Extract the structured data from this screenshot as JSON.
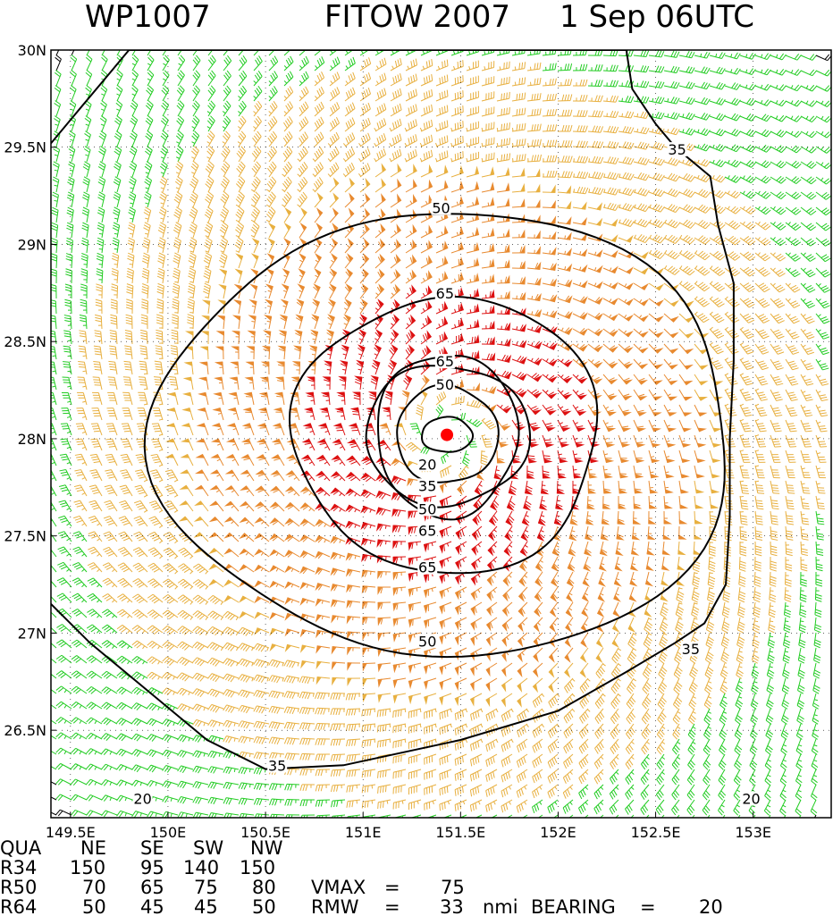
{
  "title": {
    "storm_id": "WP1007",
    "storm_name": "FITOW 2007",
    "date": "1 Sep 06UTC"
  },
  "colors": {
    "barb_lt20": "#000000",
    "barb_20_35": "#22cc22",
    "barb_35_50": "#e8b040",
    "barb_50_65": "#e88a30",
    "barb_ge65": "#dd1111",
    "contour": "#000000",
    "center": "#ff0000"
  },
  "chart_data": {
    "type": "wind-field-map",
    "x_axis": {
      "range": [
        149.4,
        153.4
      ],
      "ticks": [
        149.5,
        150,
        150.5,
        151,
        151.5,
        152,
        152.5,
        153
      ],
      "tick_labels": [
        "149.5E",
        "150E",
        "150.5E",
        "151E",
        "151.5E",
        "152E",
        "152.5E",
        "153E"
      ]
    },
    "y_axis": {
      "range": [
        26.05,
        30
      ],
      "ticks": [
        26.5,
        27,
        27.5,
        28,
        28.5,
        29,
        29.5,
        30
      ],
      "tick_labels": [
        "26.5N",
        "27N",
        "27.5N",
        "28N",
        "28.5N",
        "29N",
        "29.5N",
        "30N"
      ]
    },
    "grid": true,
    "storm_center": {
      "lon": 151.43,
      "lat": 28.02
    },
    "contour_levels_kt": [
      20,
      35,
      50,
      65
    ],
    "contours": [
      {
        "level": 20,
        "radius_lon": 0.13,
        "radius_lat": 0.09,
        "label": "20"
      },
      {
        "level": 35,
        "radius_lon": 0.26,
        "radius_lat": 0.25,
        "label": "35"
      },
      {
        "level": 50,
        "radius_lon": 0.42,
        "radius_lat": 0.36,
        "label": "50"
      },
      {
        "level": 65,
        "radius_lon": 0.36,
        "radius_lat": 0.42,
        "label": "65"
      },
      {
        "level": 65,
        "radius_lon": 0.78,
        "radius_lat": 0.71,
        "label": "65"
      },
      {
        "level": 50,
        "radius_lon": 1.48,
        "radius_lat": 1.14,
        "label": "50"
      },
      {
        "level": 35,
        "label": "35"
      }
    ],
    "contour_labels": [
      {
        "text": "50",
        "lon": 151.4,
        "lat": 29.18
      },
      {
        "text": "65",
        "lon": 151.42,
        "lat": 28.74
      },
      {
        "text": "65",
        "lon": 151.42,
        "lat": 28.39
      },
      {
        "text": "50",
        "lon": 151.42,
        "lat": 28.27
      },
      {
        "text": "20",
        "lon": 151.33,
        "lat": 27.86
      },
      {
        "text": "35",
        "lon": 151.33,
        "lat": 27.75
      },
      {
        "text": "50",
        "lon": 151.33,
        "lat": 27.63
      },
      {
        "text": "65",
        "lon": 151.33,
        "lat": 27.52
      },
      {
        "text": "65",
        "lon": 151.33,
        "lat": 27.33
      },
      {
        "text": "50",
        "lon": 151.33,
        "lat": 26.95
      },
      {
        "text": "35",
        "lon": 152.61,
        "lat": 29.48
      },
      {
        "text": "35",
        "lon": 152.68,
        "lat": 26.91
      },
      {
        "text": "35",
        "lon": 150.56,
        "lat": 26.31
      },
      {
        "text": "20",
        "lon": 149.87,
        "lat": 26.14
      },
      {
        "text": "20",
        "lon": 152.99,
        "lat": 26.14
      }
    ]
  },
  "wind_radii": {
    "header": [
      "QUA",
      "NE",
      "SE",
      "SW",
      "NW"
    ],
    "rows": [
      {
        "label": "R34",
        "values": [
          "150",
          "95",
          "140",
          "150"
        ]
      },
      {
        "label": "R50",
        "values": [
          "70",
          "65",
          "75",
          "80"
        ]
      },
      {
        "label": "R64",
        "values": [
          "50",
          "45",
          "45",
          "50"
        ]
      }
    ],
    "vmax_label": "VMAX",
    "vmax_eq": "=",
    "vmax_value": "75",
    "rmw_label": "RMW",
    "rmw_eq": "=",
    "rmw_value": "33",
    "rmw_unit": "nmi",
    "bearing_label": "BEARING",
    "bearing_eq": "=",
    "bearing_value": "20"
  }
}
